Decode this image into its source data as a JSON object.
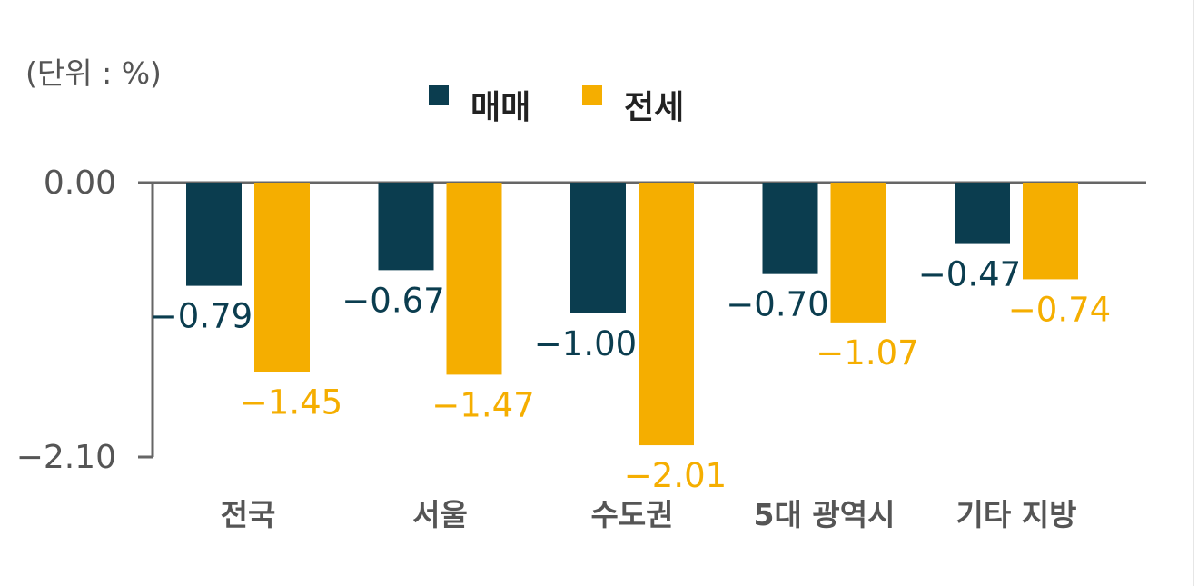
{
  "chart_data": {
    "type": "bar",
    "unit_label": "(단위 : %)",
    "categories": [
      "전국",
      "서울",
      "수도권",
      "5대 광역시",
      "기타 지방"
    ],
    "series": [
      {
        "name": "매매",
        "color": "#0b3d4f",
        "values": [
          -0.79,
          -0.67,
          -1.0,
          -0.7,
          -0.47
        ],
        "labels": [
          "−0.79",
          "−0.67",
          "−1.00",
          "−0.70",
          "−0.47"
        ]
      },
      {
        "name": "전세",
        "color": "#f5ae00",
        "values": [
          -1.45,
          -1.47,
          -2.01,
          -1.07,
          -0.74
        ],
        "labels": [
          "−1.45",
          "−1.47",
          "−2.01",
          "−1.07",
          "−0.74"
        ]
      }
    ],
    "y_ticks": [
      {
        "value": 0.0,
        "label": "0.00"
      },
      {
        "value": -2.1,
        "label": "−2.10"
      }
    ],
    "ylim": [
      -2.1,
      0
    ],
    "legend_position": "top-center",
    "grid": false
  }
}
